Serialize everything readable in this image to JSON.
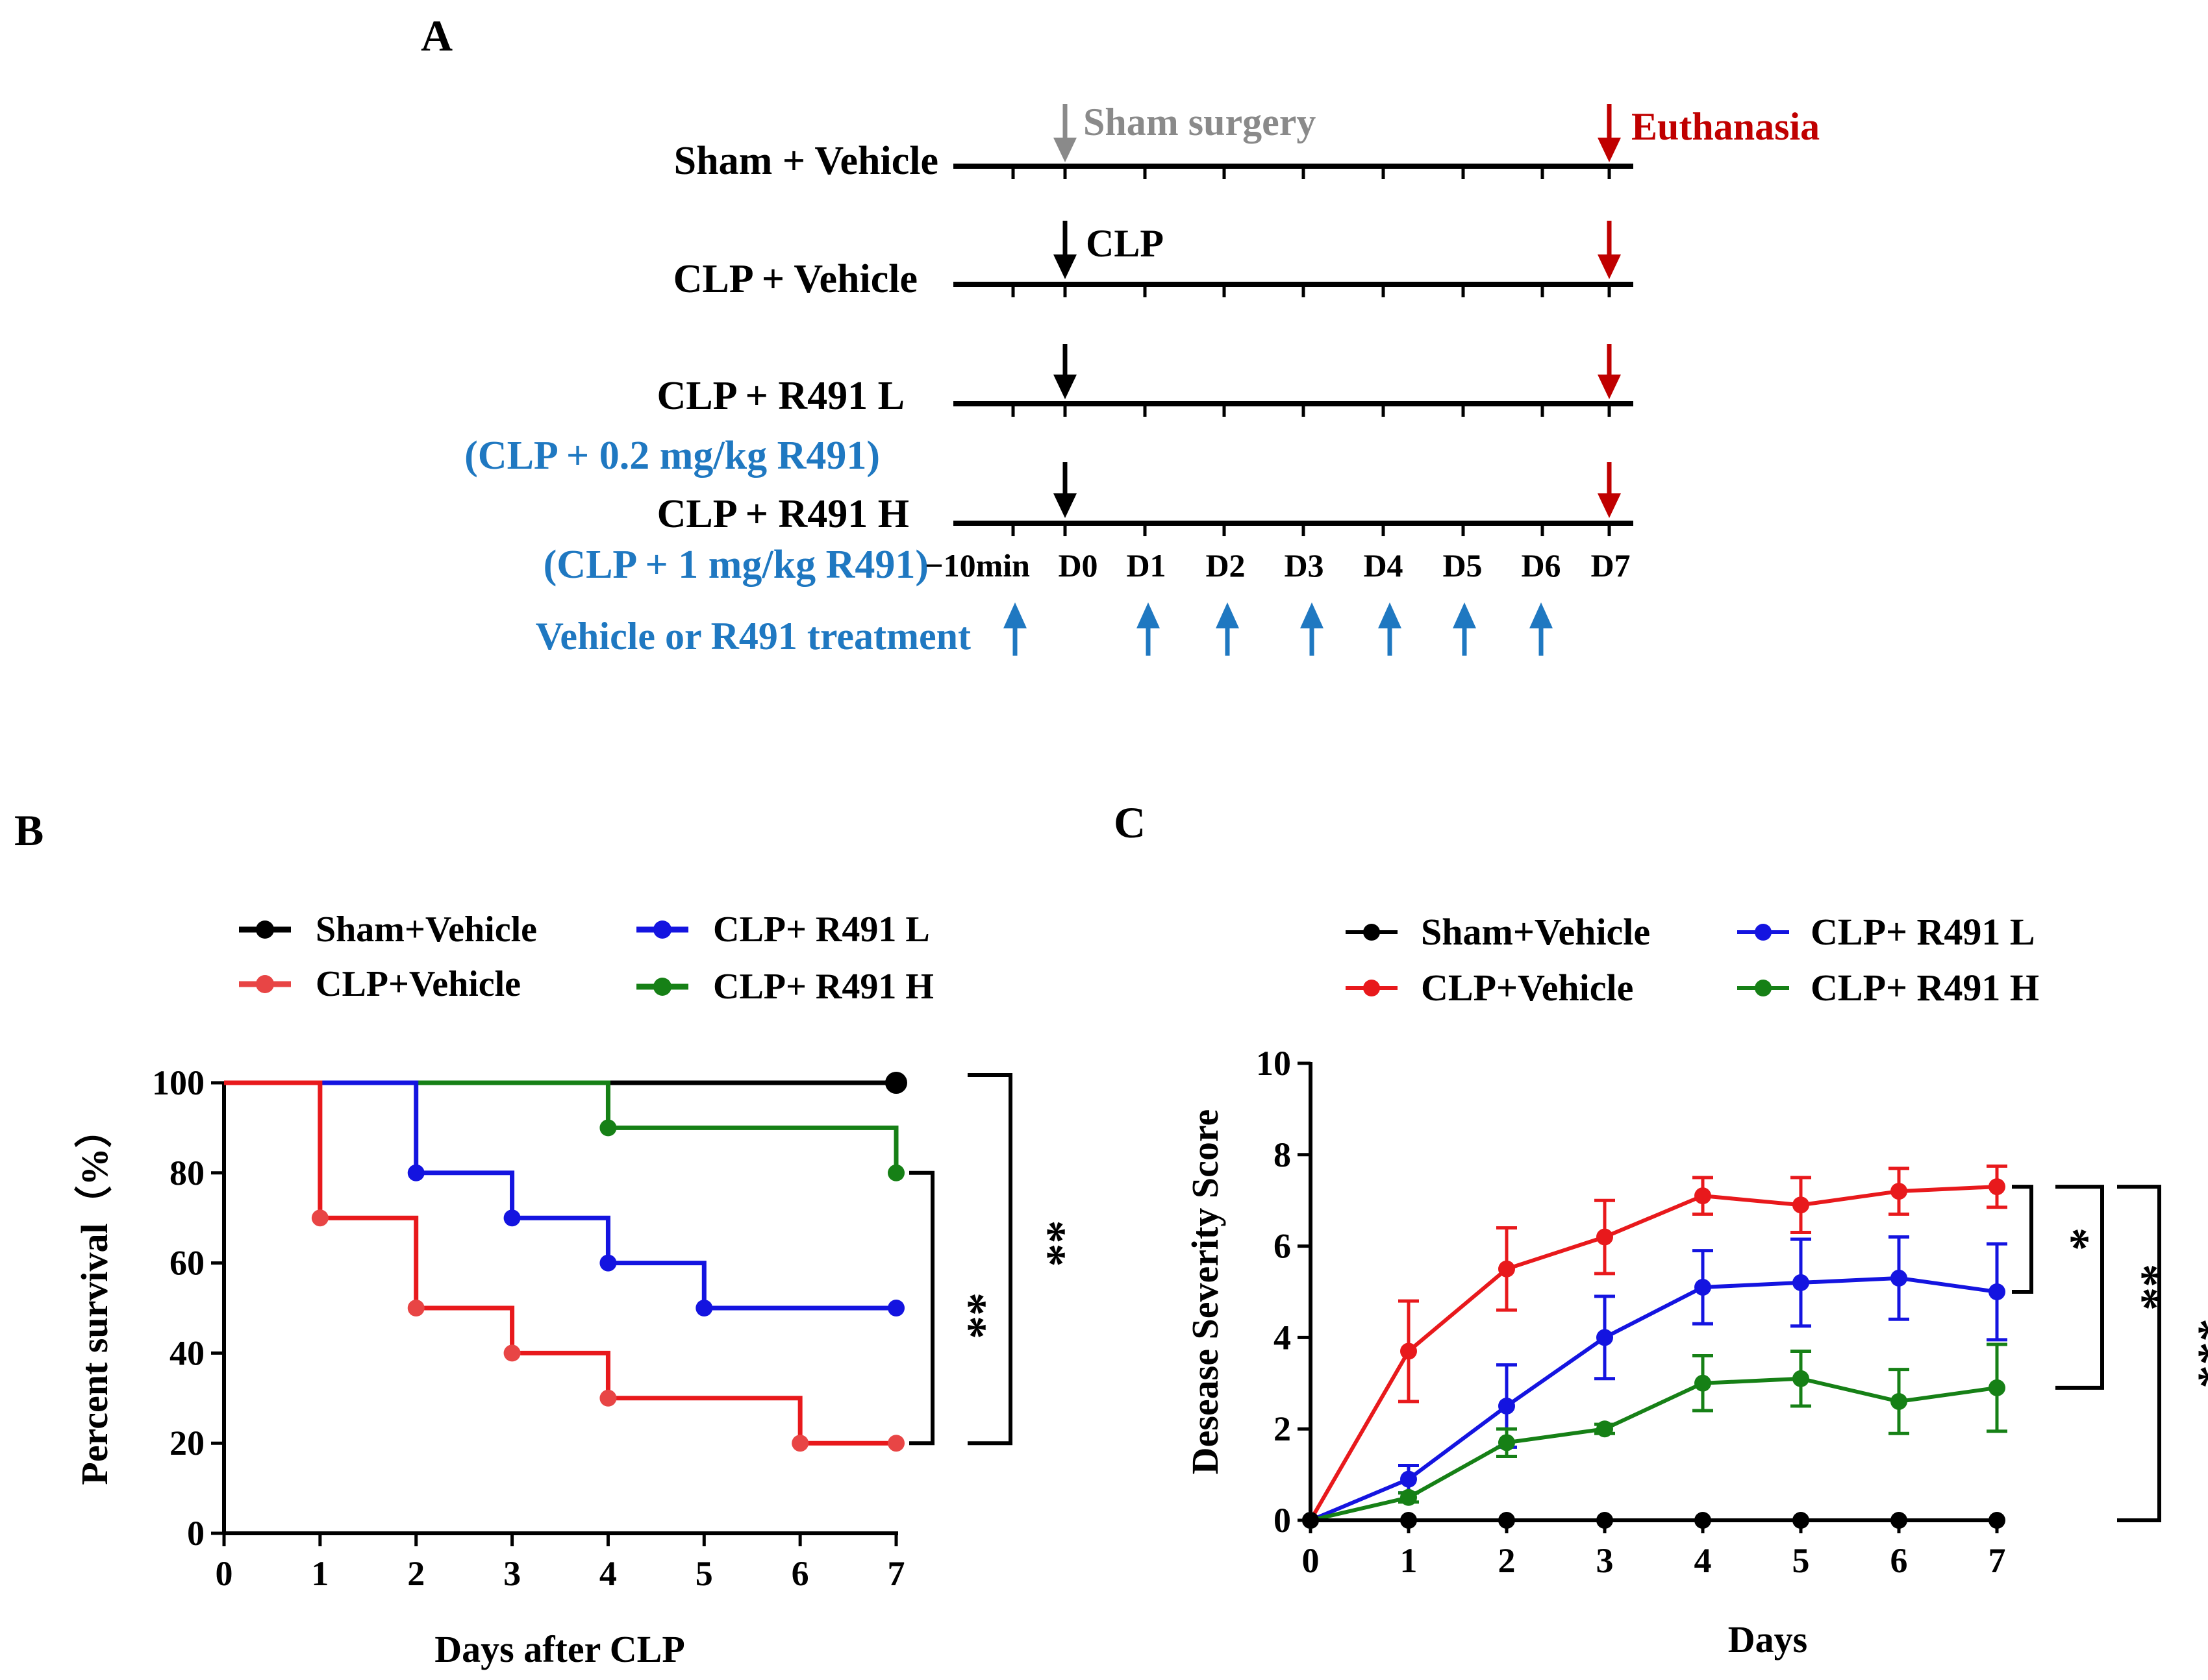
{
  "panel_labels": {
    "a": "A",
    "b": "B",
    "c": "C"
  },
  "colors": {
    "black": "#000000",
    "red": "#e8191c",
    "red_light": "#e84545",
    "blue": "#1414e0",
    "green": "#168016",
    "gray": "#8a8a8a",
    "dark_red": "#c00000",
    "treat_blue": "#1f78c1"
  },
  "timeline": {
    "groups": [
      "Sham + Vehicle",
      "CLP + Vehicle",
      "CLP + R491 L",
      "CLP + R491 H"
    ],
    "doses": [
      "(CLP + 0.2 mg/kg R491)",
      "(CLP + 1 mg/kg R491)"
    ],
    "sham_label": "Sham surgery",
    "clp_label": "CLP",
    "euthanasia_label": "Euthanasia",
    "ticks": [
      "−10min",
      "D0",
      "D1",
      "D2",
      "D3",
      "D4",
      "D5",
      "D6",
      "D7"
    ],
    "treatment_label": "Vehicle or R491 treatment"
  },
  "chart_data": [
    {
      "id": "B",
      "type": "line",
      "subtype": "kaplan-meier step",
      "title": "",
      "xlabel": "Days after CLP",
      "ylabel": "Percent survival（%）",
      "xlim": [
        0,
        7
      ],
      "ylim": [
        0,
        100
      ],
      "xticks": [
        "0",
        "1",
        "2",
        "3",
        "4",
        "5",
        "6",
        "7"
      ],
      "yticks": [
        "0",
        "20",
        "40",
        "60",
        "80",
        "100"
      ],
      "legend": [
        "Sham+Vehicle",
        "CLP+Vehicle",
        "CLP+ R491 L",
        "CLP+ R491 H"
      ],
      "series": [
        {
          "name": "Sham+Vehicle",
          "color": "#000000",
          "steps": [
            [
              0,
              100
            ],
            [
              7,
              100
            ]
          ],
          "points": [
            [
              7,
              100
            ]
          ]
        },
        {
          "name": "CLP+ R491 H",
          "color": "#168016",
          "steps": [
            [
              0,
              100
            ],
            [
              4,
              100
            ],
            [
              4,
              90
            ],
            [
              7,
              90
            ],
            [
              7,
              80
            ]
          ],
          "points": [
            [
              4,
              90
            ],
            [
              7,
              80
            ]
          ]
        },
        {
          "name": "CLP+ R491 L",
          "color": "#1414e0",
          "steps": [
            [
              0,
              100
            ],
            [
              2,
              100
            ],
            [
              2,
              80
            ],
            [
              3,
              80
            ],
            [
              3,
              70
            ],
            [
              4,
              70
            ],
            [
              4,
              60
            ],
            [
              5,
              60
            ],
            [
              5,
              50
            ],
            [
              7,
              50
            ]
          ],
          "points": [
            [
              2,
              80
            ],
            [
              3,
              70
            ],
            [
              4,
              60
            ],
            [
              5,
              50
            ],
            [
              7,
              50
            ]
          ]
        },
        {
          "name": "CLP+Vehicle",
          "color": "#e8191c",
          "steps": [
            [
              0,
              100
            ],
            [
              1,
              100
            ],
            [
              1,
              70
            ],
            [
              2,
              70
            ],
            [
              2,
              50
            ],
            [
              3,
              50
            ],
            [
              3,
              40
            ],
            [
              4,
              40
            ],
            [
              4,
              30
            ],
            [
              6,
              30
            ],
            [
              6,
              20
            ],
            [
              7,
              20
            ]
          ],
          "points": [
            [
              1,
              70
            ],
            [
              2,
              50
            ],
            [
              3,
              40
            ],
            [
              4,
              30
            ],
            [
              6,
              20
            ],
            [
              7,
              20
            ]
          ]
        }
      ],
      "significance": [
        {
          "label": "**",
          "between": [
            "CLP+ R491 H",
            "CLP+Vehicle"
          ],
          "y_range": [
            80,
            20
          ]
        },
        {
          "label": "**",
          "between": [
            "Sham+Vehicle",
            "CLP+Vehicle"
          ],
          "y_range": [
            100,
            20
          ]
        }
      ]
    },
    {
      "id": "C",
      "type": "line",
      "title": "",
      "xlabel": "Days",
      "ylabel": "Desease Severity Score",
      "xlim": [
        0,
        7
      ],
      "ylim": [
        0,
        10
      ],
      "xticks": [
        "0",
        "1",
        "2",
        "3",
        "4",
        "5",
        "6",
        "7"
      ],
      "yticks": [
        "0",
        "2",
        "4",
        "6",
        "8",
        "10"
      ],
      "x": [
        0,
        1,
        2,
        3,
        4,
        5,
        6,
        7
      ],
      "legend": [
        "Sham+Vehicle",
        "CLP+Vehicle",
        "CLP+ R491 L",
        "CLP+ R491 H"
      ],
      "series": [
        {
          "name": "CLP+Vehicle",
          "color": "#e8191c",
          "values": [
            0,
            3.7,
            5.5,
            6.2,
            7.1,
            6.9,
            7.2,
            7.3
          ],
          "errors": [
            0,
            1.1,
            0.9,
            0.8,
            0.4,
            0.6,
            0.5,
            0.45
          ]
        },
        {
          "name": "CLP+ R491 L",
          "color": "#1414e0",
          "values": [
            0,
            0.9,
            2.5,
            4.0,
            5.1,
            5.2,
            5.3,
            5.0
          ],
          "errors": [
            0,
            0.3,
            0.9,
            0.9,
            0.8,
            0.95,
            0.9,
            1.05
          ]
        },
        {
          "name": "CLP+ R491 H",
          "color": "#168016",
          "values": [
            0,
            0.5,
            1.7,
            2.0,
            3.0,
            3.1,
            2.6,
            2.9
          ],
          "errors": [
            0,
            0.1,
            0.3,
            0.1,
            0.6,
            0.6,
            0.7,
            0.95
          ]
        },
        {
          "name": "Sham+Vehicle",
          "color": "#000000",
          "values": [
            0,
            0,
            0,
            0,
            0,
            0,
            0,
            0
          ],
          "errors": [
            0,
            0,
            0,
            0,
            0,
            0,
            0,
            0
          ]
        }
      ],
      "significance": [
        {
          "label": "*",
          "between": [
            "CLP+Vehicle",
            "CLP+ R491 L"
          ],
          "y_range": [
            7.3,
            5.0
          ]
        },
        {
          "label": "**",
          "between": [
            "CLP+Vehicle",
            "CLP+ R491 H"
          ],
          "y_range": [
            7.3,
            2.9
          ]
        },
        {
          "label": "***",
          "between": [
            "CLP+Vehicle",
            "Sham+Vehicle"
          ],
          "y_range": [
            7.3,
            0
          ]
        }
      ]
    }
  ]
}
